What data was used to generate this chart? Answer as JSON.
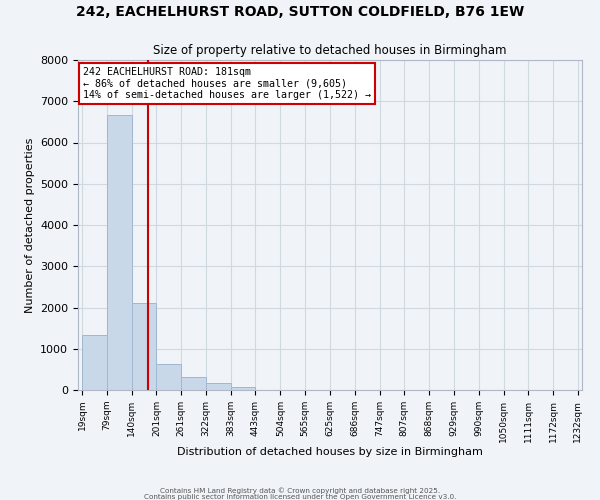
{
  "title_line1": "242, EACHELHURST ROAD, SUTTON COLDFIELD, B76 1EW",
  "title_line2": "Size of property relative to detached houses in Birmingham",
  "xlabel": "Distribution of detached houses by size in Birmingham",
  "ylabel": "Number of detached properties",
  "bar_color": "#c8d8e8",
  "bar_edge_color": "#a0b8d0",
  "grid_color": "#d0d8e0",
  "background_color": "#f0f4f8",
  "vline_x": 181,
  "vline_color": "#cc0000",
  "annotation_lines": [
    "242 EACHELHURST ROAD: 181sqm",
    "← 86% of detached houses are smaller (9,605)",
    "14% of semi-detached houses are larger (1,522) →"
  ],
  "annotation_box_edge": "#cc0000",
  "footer_lines": [
    "Contains HM Land Registry data © Crown copyright and database right 2025.",
    "Contains public sector information licensed under the Open Government Licence v3.0."
  ],
  "bin_edges": [
    19,
    79,
    140,
    201,
    261,
    322,
    383,
    443,
    504,
    565,
    625,
    686,
    747,
    807,
    868,
    929,
    990,
    1050,
    1111,
    1172,
    1232
  ],
  "bin_labels": [
    "19sqm",
    "79sqm",
    "140sqm",
    "201sqm",
    "261sqm",
    "322sqm",
    "383sqm",
    "443sqm",
    "504sqm",
    "565sqm",
    "625sqm",
    "686sqm",
    "747sqm",
    "807sqm",
    "868sqm",
    "929sqm",
    "990sqm",
    "1050sqm",
    "1111sqm",
    "1172sqm",
    "1232sqm"
  ],
  "bar_heights": [
    1340,
    6670,
    2100,
    640,
    310,
    160,
    80,
    0,
    0,
    0,
    0,
    0,
    0,
    0,
    0,
    0,
    0,
    0,
    0,
    0
  ],
  "ylim": [
    0,
    8000
  ],
  "yticks": [
    0,
    1000,
    2000,
    3000,
    4000,
    5000,
    6000,
    7000,
    8000
  ]
}
